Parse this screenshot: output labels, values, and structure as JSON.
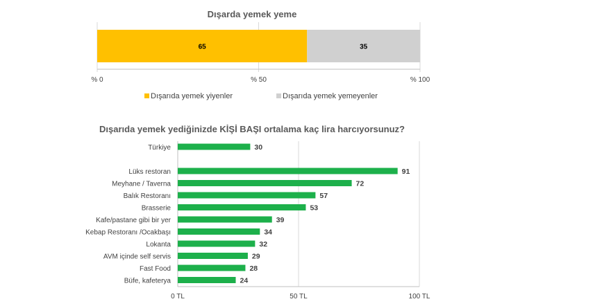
{
  "chart_data": [
    {
      "type": "bar",
      "orientation": "horizontal-stacked-100",
      "title": "Dışarda yemek yeme",
      "categories": [
        ""
      ],
      "series": [
        {
          "name": "Dışarıda yemek yiyenler",
          "values": [
            65
          ],
          "color": "#FFC000"
        },
        {
          "name": "Dışarıda yemek yemeyenler",
          "values": [
            35
          ],
          "color": "#D0D0D0"
        }
      ],
      "xlim": [
        0,
        100
      ],
      "xticks": [
        0,
        50,
        100
      ],
      "xtick_labels": [
        "% 0",
        "% 50",
        "% 100"
      ],
      "grid": true,
      "legend": "bottom"
    },
    {
      "type": "bar",
      "orientation": "horizontal",
      "title": "Dışarıda yemek yediğinizde KİŞİ BAŞI ortalama kaç lira harcıyorsunuz?",
      "categories": [
        "Türkiye",
        "Lüks restoran",
        "Meyhane / Taverna",
        "Balık Restoranı",
        "Brasserie",
        "Kafe/pastane gibi bir yer",
        "Kebap Restoranı /Ocakbaşı",
        "Lokanta",
        "AVM içinde self servis",
        "Fast Food",
        "Büfe, kafeterya"
      ],
      "values": [
        30,
        91,
        72,
        57,
        53,
        39,
        34,
        32,
        29,
        28,
        24
      ],
      "color": "#1DB04B",
      "xlim": [
        0,
        100
      ],
      "xticks": [
        0,
        50,
        100
      ],
      "xtick_labels": [
        "0 TL",
        "50 TL",
        "100 TL"
      ],
      "grid": true,
      "legend": "none"
    }
  ]
}
